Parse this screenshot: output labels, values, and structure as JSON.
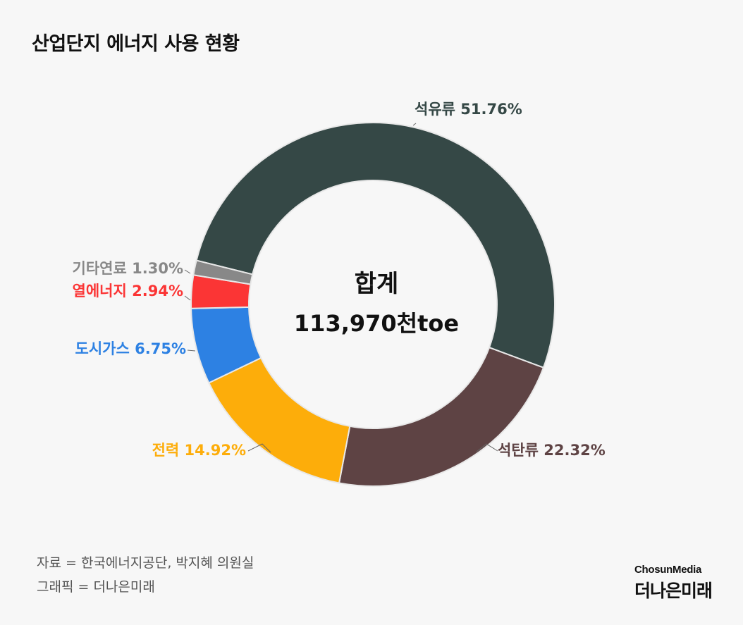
{
  "title": "산업단지 에너지 사용 현황",
  "chart_data": {
    "type": "pie",
    "variant": "donut",
    "center_title": "합계",
    "center_value": "113,970천toe",
    "slices": [
      {
        "label": "석유류",
        "value": 51.76,
        "display": "석유류 51.76%",
        "color": "#354846"
      },
      {
        "label": "석탄류",
        "value": 22.32,
        "display": "석탄류 22.32%",
        "color": "#5e4344"
      },
      {
        "label": "전력",
        "value": 14.92,
        "display": "전력 14.92%",
        "color": "#fdad0a"
      },
      {
        "label": "도시가스",
        "value": 6.75,
        "display": "도시가스 6.75%",
        "color": "#2d81e3"
      },
      {
        "label": "열에너지",
        "value": 2.94,
        "display": "열에너지 2.94%",
        "color": "#fb3535"
      },
      {
        "label": "기타연료",
        "value": 1.3,
        "display": "기타연료 1.30%",
        "color": "#888888"
      }
    ],
    "label_colors": {
      "석유류": "#354846",
      "석탄류": "#5e4344",
      "전력": "#fdad0a",
      "도시가스": "#2d81e3",
      "열에너지": "#fb3535",
      "기타연료": "#888888"
    }
  },
  "footer": {
    "source": "자료 = 한국에너지공단, 박지혜 의원실",
    "graphic": "그래픽 = 더나은미래"
  },
  "logo": {
    "top": "ChosunMedia",
    "main": "더나은미래"
  }
}
